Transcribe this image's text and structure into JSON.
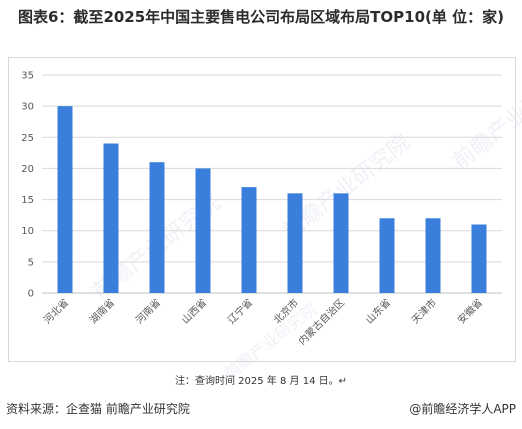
{
  "title": "图表6：截至2025年中国主要售电公司布局区域布局TOP10(单 位：家)",
  "note": "注：查询时间 2025 年 8 月 14 日。↵",
  "source": "资料来源：企查猫 前瞻产业研究院",
  "brand": "@前瞻经济学人APP",
  "watermark": "前瞻产业研究院",
  "chart_data": {
    "type": "bar",
    "categories": [
      "河北省",
      "湖南省",
      "河南省",
      "山西省",
      "辽宁省",
      "北京市",
      "内蒙古自治区",
      "山东省",
      "天津市",
      "安徽省"
    ],
    "values": [
      30,
      24,
      21,
      20,
      17,
      16,
      16,
      12,
      12,
      11
    ],
    "ylim": [
      0,
      35
    ],
    "yticks": [
      0,
      5,
      10,
      15,
      20,
      25,
      30,
      35
    ],
    "grid": true,
    "bar_color": "#3a7fdb"
  }
}
